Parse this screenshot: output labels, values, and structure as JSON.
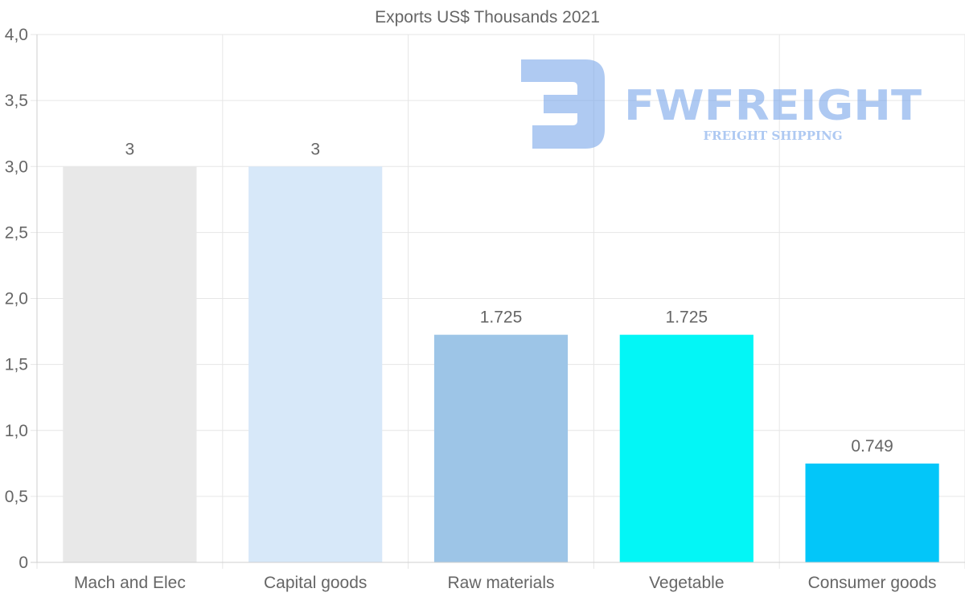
{
  "chart_data": {
    "type": "bar",
    "title": "Exports US$ Thousands 2021",
    "categories": [
      "Mach and Elec",
      "Capital goods",
      "Raw materials",
      "Vegetable",
      "Consumer goods"
    ],
    "values": [
      3,
      3,
      1.725,
      1.725,
      0.749
    ],
    "value_labels": [
      "3",
      "3",
      "1.725",
      "1.725",
      "0.749"
    ],
    "colors": [
      "#e8e8e8",
      "#d7e8f9",
      "#9dc5e7",
      "#03f6f6",
      "#03c6f9"
    ],
    "ylim": [
      0,
      4
    ],
    "yticks": [
      0,
      0.5,
      1,
      1.5,
      2,
      2.5,
      3,
      3.5,
      4
    ],
    "ytick_labels": [
      "0",
      "0,5",
      "1,0",
      "1,5",
      "2,0",
      "2,5",
      "3,0",
      "3,5",
      "4,0"
    ],
    "xlabel": "",
    "ylabel": "",
    "grid": true,
    "legend": "none"
  },
  "watermark": {
    "brand": "FWFREIGHT",
    "tagline": "FREIGHT SHIPPING",
    "color": "#7aa6ea"
  }
}
